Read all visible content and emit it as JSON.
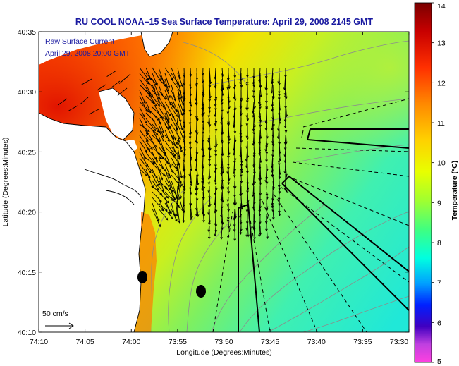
{
  "title": "RU COOL  NOAA–15  Sea Surface Temperature:  April 29, 2008 2145 GMT",
  "legend_lines": [
    "Raw Surface Current",
    "April 29, 2008 20:00 GMT"
  ],
  "scale_label": "50 cm/s",
  "axes": {
    "xlabel": "Longitude (Degrees:Minutes)",
    "ylabel": "Latitude (Degrees:Minutes)",
    "x_ticks": [
      "74:10",
      "74:05",
      "74:00",
      "73:55",
      "73:50",
      "73:45",
      "73:40",
      "73:35",
      "73:30"
    ],
    "y_ticks": [
      "40:35",
      "40:30",
      "40:25",
      "40:20",
      "40:15",
      "40:10"
    ]
  },
  "colorbar": {
    "label": "Temperature (°C)",
    "ticks": [
      "14",
      "13",
      "12",
      "11",
      "10",
      "9",
      "8",
      "7",
      "6",
      "5"
    ]
  }
}
